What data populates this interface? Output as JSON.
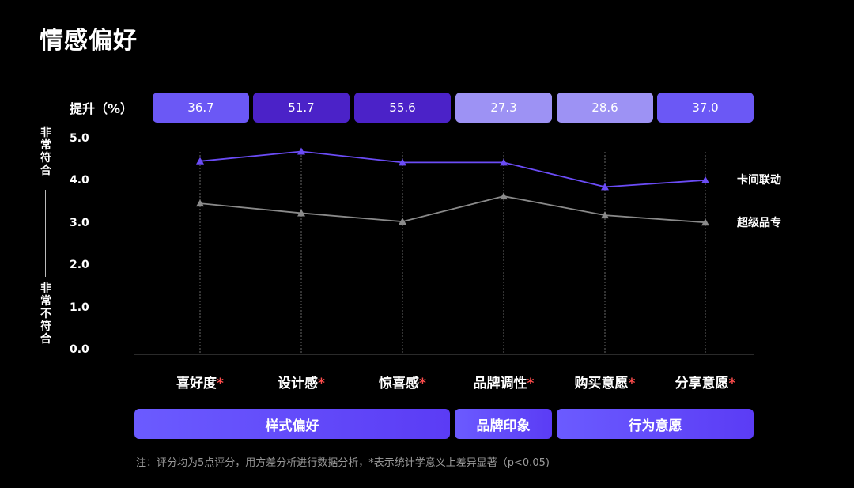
{
  "title": "情感偏好",
  "lift": {
    "label": "提升（%）",
    "values": [
      "36.7",
      "51.7",
      "55.6",
      "27.3",
      "28.6",
      "37.0"
    ],
    "colors": [
      "#6b58f5",
      "#4b22c8",
      "#4b22c8",
      "#9d92f4",
      "#9d92f4",
      "#6b58f5"
    ]
  },
  "axis_side": {
    "top": "非常符合",
    "bottom": "非常不符合"
  },
  "chart_data": {
    "type": "line",
    "categories": [
      "喜好度",
      "设计感",
      "惊喜感",
      "品牌调性",
      "购买意愿",
      "分享意愿"
    ],
    "category_marker": "*",
    "yticks": [
      "5.0",
      "4.0",
      "3.0",
      "2.0",
      "1.0",
      "0.0"
    ],
    "ylim": [
      0,
      5
    ],
    "series": [
      {
        "name": "卡间联动",
        "values": [
          4.48,
          4.71,
          4.45,
          4.45,
          3.87,
          4.03
        ],
        "color": "#6b4cf6",
        "marker": "triangle"
      },
      {
        "name": "超级品专",
        "values": [
          3.48,
          3.25,
          3.05,
          3.65,
          3.2,
          3.03
        ],
        "color": "#8a8a8a",
        "marker": "triangle"
      }
    ]
  },
  "groups": [
    {
      "label": "样式偏好"
    },
    {
      "label": "品牌印象"
    },
    {
      "label": "行为意愿"
    }
  ],
  "note": "注：评分均为5点评分，用方差分析进行数据分析，*表示统计学意义上差异显著（p<0.05)"
}
